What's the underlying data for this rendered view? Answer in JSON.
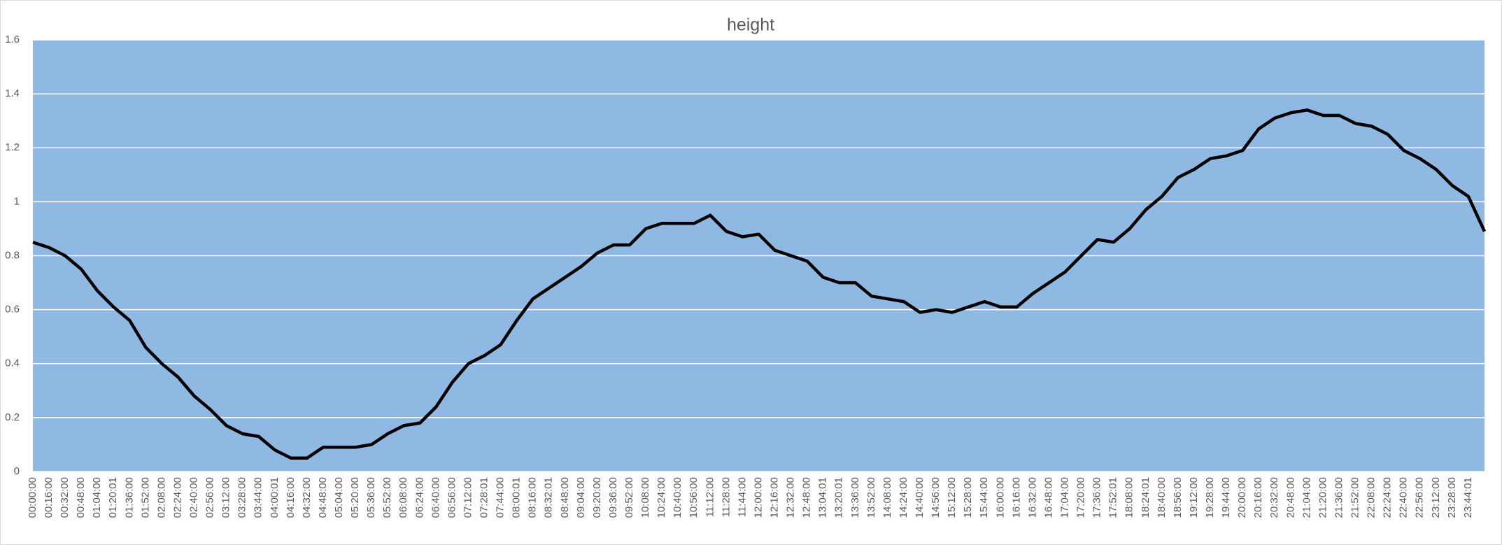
{
  "chart_data": {
    "type": "line",
    "title": "height",
    "categories": [
      "00:00:00",
      "00:16:00",
      "00:32:00",
      "00:48:00",
      "01:04:00",
      "01:20:01",
      "01:36:00",
      "01:52:00",
      "02:08:00",
      "02:24:00",
      "02:40:00",
      "02:56:00",
      "03:12:00",
      "03:28:00",
      "03:44:00",
      "04:00:01",
      "04:16:00",
      "04:32:00",
      "04:48:00",
      "05:04:00",
      "05:20:00",
      "05:36:00",
      "05:52:00",
      "06:08:00",
      "06:24:00",
      "06:40:00",
      "06:56:00",
      "07:12:00",
      "07:28:01",
      "07:44:00",
      "08:00:01",
      "08:16:00",
      "08:32:01",
      "08:48:00",
      "09:04:00",
      "09:20:00",
      "09:36:00",
      "09:52:00",
      "10:08:00",
      "10:24:00",
      "10:40:00",
      "10:56:00",
      "11:12:00",
      "11:28:00",
      "11:44:00",
      "12:00:00",
      "12:16:00",
      "12:32:00",
      "12:48:00",
      "13:04:01",
      "13:20:01",
      "13:36:00",
      "13:52:00",
      "14:08:00",
      "14:24:00",
      "14:40:00",
      "14:56:00",
      "15:12:00",
      "15:28:00",
      "15:44:00",
      "16:00:00",
      "16:16:00",
      "16:32:00",
      "16:48:00",
      "17:04:00",
      "17:20:00",
      "17:36:00",
      "17:52:01",
      "18:08:00",
      "18:24:01",
      "18:40:00",
      "18:56:00",
      "19:12:00",
      "19:28:00",
      "19:44:00",
      "20:00:00",
      "20:16:00",
      "20:32:00",
      "20:48:00",
      "21:04:00",
      "21:20:00",
      "21:36:00",
      "21:52:00",
      "22:08:00",
      "22:24:00",
      "22:40:00",
      "22:56:00",
      "23:12:00",
      "23:28:00",
      "23:44:01",
      null
    ],
    "values": [
      0.85,
      0.83,
      0.8,
      0.75,
      0.67,
      0.61,
      0.56,
      0.46,
      0.4,
      0.35,
      0.28,
      0.23,
      0.17,
      0.14,
      0.13,
      0.08,
      0.05,
      0.05,
      0.09,
      0.09,
      0.09,
      0.1,
      0.14,
      0.17,
      0.18,
      0.24,
      0.33,
      0.4,
      0.43,
      0.47,
      0.56,
      0.64,
      0.68,
      0.72,
      0.76,
      0.81,
      0.84,
      0.84,
      0.9,
      0.92,
      0.92,
      0.92,
      0.95,
      0.89,
      0.87,
      0.88,
      0.82,
      0.8,
      0.78,
      0.72,
      0.7,
      0.7,
      0.65,
      0.64,
      0.63,
      0.59,
      0.6,
      0.59,
      0.61,
      0.63,
      0.61,
      0.61,
      0.66,
      0.7,
      0.74,
      0.8,
      0.86,
      0.85,
      0.9,
      0.97,
      1.02,
      1.09,
      1.12,
      1.16,
      1.17,
      1.19,
      1.27,
      1.31,
      1.33,
      1.34,
      1.32,
      1.32,
      1.29,
      1.28,
      1.25,
      1.19,
      1.16,
      1.12,
      1.06,
      1.02,
      0.89
    ],
    "color": "#000000",
    "ylim": [
      0,
      1.6
    ],
    "yticks": [
      0,
      0.2,
      0.4,
      0.6,
      0.8,
      1,
      1.2,
      1.4,
      1.6
    ],
    "grid": true
  }
}
